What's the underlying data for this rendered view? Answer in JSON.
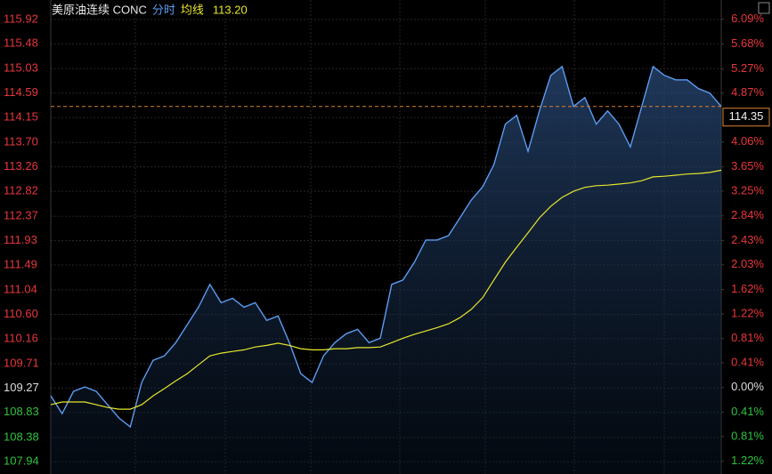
{
  "chart_data": {
    "type": "line",
    "title": "美原油连续 CONC",
    "mode_label": "分时",
    "avg_title": "均线",
    "avg_label": "113.20",
    "current_price": 114.35,
    "grid": true,
    "series": [
      {
        "name": "price",
        "color": "#5b9cf0",
        "values": [
          109.13,
          108.81,
          109.21,
          109.29,
          109.21,
          108.97,
          108.73,
          108.57,
          109.37,
          109.77,
          109.85,
          110.09,
          110.41,
          110.73,
          111.14,
          110.81,
          110.89,
          110.73,
          110.81,
          110.49,
          110.57,
          110.09,
          109.53,
          109.37,
          109.85,
          110.09,
          110.25,
          110.33,
          110.09,
          110.17,
          111.14,
          111.22,
          111.54,
          111.94,
          111.94,
          112.02,
          112.34,
          112.66,
          112.9,
          113.3,
          114.03,
          114.19,
          113.54,
          114.27,
          114.91,
          115.07,
          114.35,
          114.51,
          114.03,
          114.27,
          114.03,
          113.62,
          114.35,
          115.07,
          114.91,
          114.83,
          114.83,
          114.67,
          114.59,
          114.35
        ]
      },
      {
        "name": "avg",
        "color": "#e6e62e",
        "values": [
          108.97,
          109.02,
          109.02,
          109.02,
          108.97,
          108.92,
          108.89,
          108.89,
          108.97,
          109.13,
          109.26,
          109.4,
          109.53,
          109.69,
          109.85,
          109.9,
          109.93,
          109.96,
          110.01,
          110.04,
          110.08,
          110.04,
          109.98,
          109.96,
          109.96,
          109.98,
          109.98,
          110.0,
          110.0,
          110.01,
          110.09,
          110.17,
          110.24,
          110.3,
          110.36,
          110.43,
          110.54,
          110.69,
          110.9,
          111.22,
          111.54,
          111.81,
          112.07,
          112.34,
          112.55,
          112.71,
          112.82,
          112.89,
          112.92,
          112.93,
          112.95,
          112.97,
          113.01,
          113.08,
          113.09,
          113.11,
          113.13,
          113.14,
          113.16,
          113.2
        ]
      }
    ],
    "ylim": [
      107.72,
      116.27
    ],
    "yticks": [
      115.92,
      115.48,
      115.03,
      114.59,
      114.15,
      {
        "value": 113.7,
        "label": "113.70"
      },
      113.26,
      112.82,
      112.37,
      111.93,
      111.49,
      111.04,
      {
        "value": 110.6,
        "label": "110.60"
      },
      110.16,
      109.71,
      109.27,
      108.83,
      108.38,
      107.94
    ],
    "y2lim": [
      -1.43,
      6.41
    ],
    "y2ticks": [
      {
        "value": 6.09,
        "label": "6.09%"
      },
      {
        "value": 5.68,
        "label": "5.68%"
      },
      {
        "value": 5.27,
        "label": "5.27%"
      },
      {
        "value": 4.87,
        "label": "4.87%"
      },
      {
        "value": 4.06,
        "label": "4.06%"
      },
      {
        "value": 3.65,
        "label": "3.65%"
      },
      {
        "value": 3.25,
        "label": "3.25%"
      },
      {
        "value": 2.84,
        "label": "2.84%"
      },
      {
        "value": 2.43,
        "label": "2.43%"
      },
      {
        "value": 2.03,
        "label": "2.03%"
      },
      {
        "value": 1.62,
        "label": "1.62%"
      },
      {
        "value": 1.22,
        "label": "1.22%"
      },
      {
        "value": 0.81,
        "label": "0.81%"
      },
      {
        "value": 0.41,
        "label": "0.41%"
      },
      {
        "value": 0,
        "label": "0.00%"
      },
      {
        "value": -0.41,
        "label": "0.41%"
      },
      {
        "value": -0.81,
        "label": "0.81%"
      },
      {
        "value": -1.22,
        "label": "1.22%"
      }
    ]
  }
}
